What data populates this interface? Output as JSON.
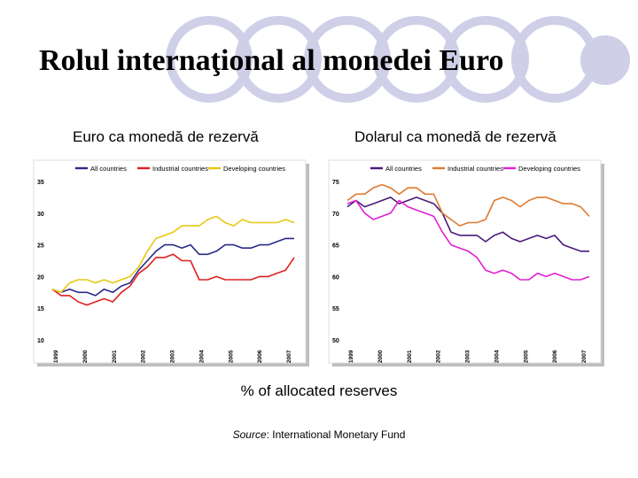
{
  "title": "Rolul internaţional al monedei Euro",
  "footer": "% of allocated reserves",
  "source": {
    "label": "Source",
    "text": ": International Monetary Fund"
  },
  "colors": {
    "all": "#2a2a8a",
    "industrial": "#e02020",
    "developing": "#e8c810",
    "dev_right": "#e020d0",
    "ind_right": "#e07a30",
    "ring": "#cfcfe8"
  },
  "chart_data": [
    {
      "type": "line",
      "title": "Euro ca monedă de rezervă",
      "xlabel": "",
      "ylabel": "",
      "ylim": [
        10,
        35
      ],
      "yticks": [
        10,
        15,
        20,
        25,
        30,
        35
      ],
      "xticks": [
        "1999",
        "2000",
        "2001",
        "2002",
        "2003",
        "2004",
        "2005",
        "2006",
        "2007"
      ],
      "grid": false,
      "legend": "top",
      "series": [
        {
          "name": "All countries",
          "color": "#2a2a8a",
          "values": [
            18,
            17.5,
            18,
            17.5,
            17.5,
            17,
            18,
            17.5,
            18.5,
            19,
            21,
            22.5,
            24,
            25,
            25,
            24.5,
            25,
            23.5,
            23.5,
            24,
            25,
            25,
            24.5,
            24.5,
            25,
            25,
            25.5,
            26,
            26
          ]
        },
        {
          "name": "Industrial countries",
          "color": "#e02020",
          "values": [
            18,
            17,
            17,
            16,
            15.5,
            16,
            16.5,
            16,
            17.5,
            18.5,
            20.5,
            21.5,
            23,
            23,
            23.5,
            22.5,
            22.5,
            19.5,
            19.5,
            20,
            19.5,
            19.5,
            19.5,
            19.5,
            20,
            20,
            20.5,
            21,
            23
          ]
        },
        {
          "name": "Developing countries",
          "color": "#e8c810",
          "values": [
            18,
            17.5,
            19,
            19.5,
            19.5,
            19,
            19.5,
            19,
            19.5,
            20,
            21.5,
            24,
            26,
            26.5,
            27,
            28,
            28,
            28,
            29,
            29.5,
            28.5,
            28,
            29,
            28.5,
            28.5,
            28.5,
            28.5,
            29,
            28.5
          ]
        }
      ]
    },
    {
      "type": "line",
      "title": "Dolarul ca monedă de rezervă",
      "xlabel": "",
      "ylabel": "",
      "ylim": [
        50,
        75
      ],
      "yticks": [
        50,
        55,
        60,
        65,
        70,
        75
      ],
      "xticks": [
        "1999",
        "2000",
        "2001",
        "2002",
        "2003",
        "2004",
        "2005",
        "2006",
        "2007"
      ],
      "grid": false,
      "legend": "top",
      "series": [
        {
          "name": "All countries",
          "color": "#4a1a7a",
          "values": [
            71,
            72,
            71,
            71.5,
            72,
            72.5,
            71.5,
            72,
            72.5,
            72,
            71.5,
            70,
            67,
            66.5,
            66.5,
            66.5,
            65.5,
            66.5,
            67,
            66,
            65.5,
            66,
            66.5,
            66,
            66.5,
            65,
            64.5,
            64,
            64
          ]
        },
        {
          "name": "Industrial countries",
          "color": "#e07a30",
          "values": [
            72,
            73,
            73,
            74,
            74.5,
            74,
            73,
            74,
            74,
            73,
            73,
            70,
            69,
            68,
            68.5,
            68.5,
            69,
            72,
            72.5,
            72,
            71,
            72,
            72.5,
            72.5,
            72,
            71.5,
            71.5,
            71,
            69.5
          ]
        },
        {
          "name": "Developing countries",
          "color": "#e020d0",
          "values": [
            71.5,
            72,
            70,
            69,
            69.5,
            70,
            72,
            71,
            70.5,
            70,
            69.5,
            67,
            65,
            64.5,
            64,
            63,
            61,
            60.5,
            61,
            60.5,
            59.5,
            59.5,
            60.5,
            60,
            60.5,
            60,
            59.5,
            59.5,
            60
          ]
        }
      ]
    }
  ]
}
